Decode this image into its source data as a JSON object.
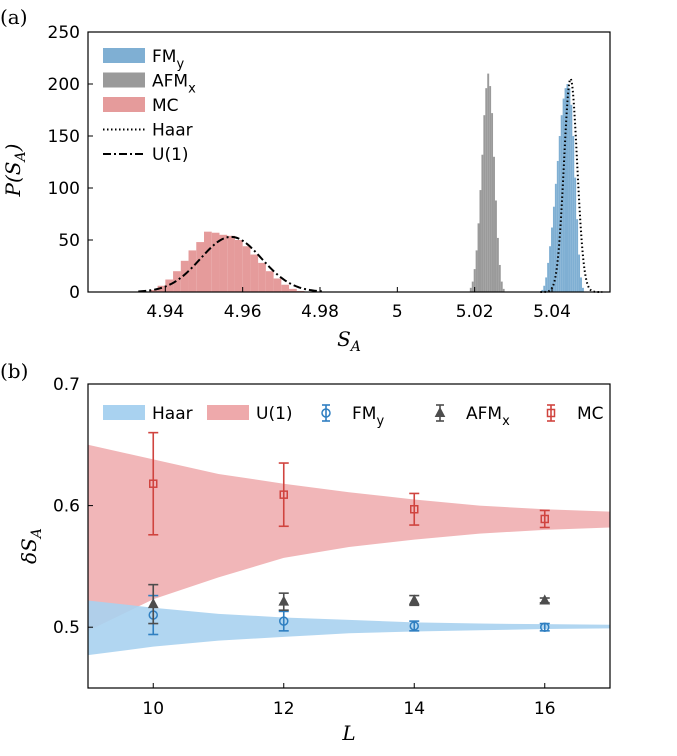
{
  "chart_data": [
    {
      "panel_label": "(a)",
      "type": "histogram",
      "xlabel": "S_A",
      "ylabel": "P(S_A)",
      "xlim": [
        4.92,
        5.055
      ],
      "ylim": [
        0,
        250
      ],
      "xticks": [
        4.94,
        4.96,
        4.98,
        5.0,
        5.02,
        5.04
      ],
      "xtick_labels": [
        "4.94",
        "4.96",
        "4.98",
        "5",
        "5.02",
        "5.04"
      ],
      "yticks": [
        0,
        50,
        100,
        150,
        200,
        250
      ],
      "ytick_labels": [
        "0",
        "50",
        "100",
        "150",
        "200",
        "250"
      ],
      "legend_position": "upper-left",
      "series": [
        {
          "name": "FM_y",
          "label_main": "FM",
          "label_sub": "y",
          "kind": "hist",
          "color": "#7fafd3",
          "bins": [
            [
              5.0375,
              2
            ],
            [
              5.038,
              6
            ],
            [
              5.0385,
              14
            ],
            [
              5.039,
              28
            ],
            [
              5.0395,
              44
            ],
            [
              5.04,
              62
            ],
            [
              5.0405,
              82
            ],
            [
              5.041,
              104
            ],
            [
              5.0415,
              126
            ],
            [
              5.042,
              150
            ],
            [
              5.0425,
              170
            ],
            [
              5.043,
              186
            ],
            [
              5.0435,
              196
            ],
            [
              5.044,
              200
            ],
            [
              5.0445,
              196
            ],
            [
              5.045,
              180
            ],
            [
              5.0455,
              150
            ],
            [
              5.046,
              110
            ],
            [
              5.0465,
              70
            ],
            [
              5.047,
              36
            ],
            [
              5.0475,
              14
            ],
            [
              5.048,
              4
            ]
          ]
        },
        {
          "name": "AFM_x",
          "label_main": "AFM",
          "label_sub": "x",
          "kind": "hist",
          "color": "#9a9a9a",
          "bins": [
            [
              5.019,
              4
            ],
            [
              5.0195,
              10
            ],
            [
              5.02,
              22
            ],
            [
              5.0205,
              40
            ],
            [
              5.021,
              66
            ],
            [
              5.0215,
              98
            ],
            [
              5.022,
              132
            ],
            [
              5.0225,
              170
            ],
            [
              5.023,
              196
            ],
            [
              5.0235,
              210
            ],
            [
              5.024,
              198
            ],
            [
              5.0245,
              172
            ],
            [
              5.025,
              130
            ],
            [
              5.0255,
              88
            ],
            [
              5.026,
              52
            ],
            [
              5.0265,
              26
            ],
            [
              5.027,
              10
            ],
            [
              5.0275,
              3
            ]
          ]
        },
        {
          "name": "MC",
          "label_main": "MC",
          "label_sub": "",
          "kind": "hist",
          "color": "#e59b9b",
          "bins": [
            [
              4.937,
              2
            ],
            [
              4.939,
              6
            ],
            [
              4.941,
              12
            ],
            [
              4.943,
              20
            ],
            [
              4.945,
              30
            ],
            [
              4.947,
              40
            ],
            [
              4.949,
              48
            ],
            [
              4.951,
              58
            ],
            [
              4.953,
              57
            ],
            [
              4.955,
              55
            ],
            [
              4.957,
              54
            ],
            [
              4.959,
              50
            ],
            [
              4.961,
              44
            ],
            [
              4.963,
              36
            ],
            [
              4.965,
              28
            ],
            [
              4.967,
              20
            ],
            [
              4.969,
              13
            ],
            [
              4.971,
              7
            ],
            [
              4.973,
              3
            ],
            [
              4.975,
              1
            ]
          ]
        },
        {
          "name": "Haar",
          "label_main": "Haar",
          "label_sub": "",
          "kind": "gaussian",
          "style": "dotted",
          "color": "#000000",
          "mean": 5.0448,
          "sd": 0.0017,
          "peak": 205,
          "range": [
            5.037,
            5.053
          ]
        },
        {
          "name": "U(1)",
          "label_main": "U(1)",
          "label_sub": "",
          "kind": "gaussian",
          "style": "dashdot",
          "color": "#000000",
          "mean": 4.957,
          "sd": 0.0079,
          "peak": 53,
          "range": [
            4.933,
            4.981
          ]
        }
      ]
    },
    {
      "panel_label": "(b)",
      "type": "errorbar",
      "xlabel": "L",
      "ylabel": "δS_A",
      "xlim": [
        9,
        17
      ],
      "ylim": [
        0.45,
        0.7
      ],
      "xticks": [
        10,
        12,
        14,
        16
      ],
      "xtick_labels": [
        "10",
        "12",
        "14",
        "16"
      ],
      "yticks": [
        0.5,
        0.6,
        0.7
      ],
      "ytick_labels": [
        "0.5",
        "0.6",
        "0.7"
      ],
      "legend_position": "top",
      "bands": [
        {
          "name": "Haar",
          "label_main": "Haar",
          "label_sub": "",
          "color": "#a9d2f0",
          "x": [
            9,
            10,
            11,
            12,
            13,
            14,
            15,
            16,
            17
          ],
          "lower": [
            0.477,
            0.484,
            0.489,
            0.492,
            0.495,
            0.4965,
            0.4975,
            0.4985,
            0.499
          ],
          "upper": [
            0.522,
            0.516,
            0.511,
            0.508,
            0.506,
            0.504,
            0.503,
            0.5025,
            0.502
          ]
        },
        {
          "name": "U(1)",
          "label_main": "U(1)",
          "label_sub": "",
          "color": "#eea9ab",
          "x": [
            9,
            10,
            11,
            12,
            13,
            14,
            15,
            16,
            17
          ],
          "lower": [
            0.497,
            0.523,
            0.541,
            0.557,
            0.566,
            0.572,
            0.577,
            0.58,
            0.582
          ],
          "upper": [
            0.65,
            0.638,
            0.626,
            0.618,
            0.611,
            0.605,
            0.6,
            0.597,
            0.595
          ]
        }
      ],
      "series": [
        {
          "name": "FM_y",
          "label_main": "FM",
          "label_sub": "y",
          "marker": "circle",
          "color": "#2f7fc1",
          "x": [
            10,
            12,
            14,
            16
          ],
          "y": [
            0.51,
            0.505,
            0.501,
            0.5
          ],
          "err": [
            0.016,
            0.008,
            0.004,
            0.003
          ]
        },
        {
          "name": "AFM_x",
          "label_main": "AFM",
          "label_sub": "x",
          "marker": "triangle",
          "color": "#4d4d4d",
          "x": [
            10,
            12,
            14,
            16
          ],
          "y": [
            0.519,
            0.521,
            0.522,
            0.522
          ],
          "err": [
            0.016,
            0.007,
            0.004,
            0.002
          ]
        },
        {
          "name": "MC",
          "label_main": "MC",
          "label_sub": "",
          "marker": "square",
          "color": "#d0443f",
          "x": [
            10,
            12,
            14,
            16
          ],
          "y": [
            0.618,
            0.609,
            0.597,
            0.589
          ],
          "err": [
            0.042,
            0.026,
            0.013,
            0.007
          ]
        }
      ]
    }
  ]
}
